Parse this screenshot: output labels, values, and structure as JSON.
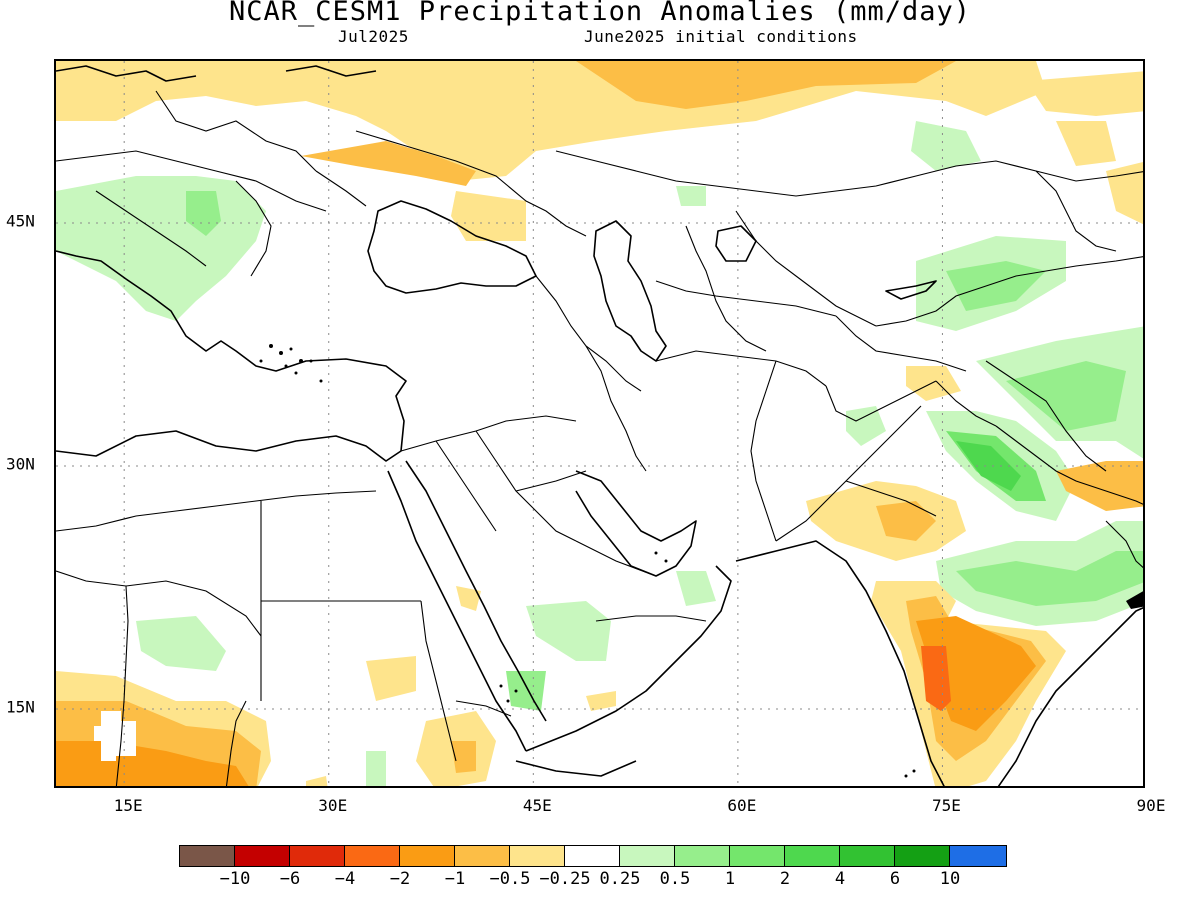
{
  "title": "NCAR_CESM1 Precipitation Anomalies (mm/day)",
  "subtitle_left": "Jul2025",
  "subtitle_right": "June2025 initial conditions",
  "map": {
    "type": "precipitation-anomaly-map",
    "lon_range": [
      10,
      90
    ],
    "lat_range": [
      10,
      55
    ],
    "x_ticks": [
      "15E",
      "30E",
      "45E",
      "60E",
      "75E",
      "90E"
    ],
    "y_ticks": [
      "45N",
      "30N",
      "15N"
    ],
    "gridlines": "dotted"
  },
  "colorbar": {
    "colors": [
      "#7a5648",
      "#c40000",
      "#e02a0a",
      "#fa6914",
      "#fa9c14",
      "#fcbe46",
      "#fee48c",
      "#ffffff",
      "#c8f7be",
      "#96ee8c",
      "#74e66c",
      "#4ed84e",
      "#32c232",
      "#14a014",
      "#1e6ee6"
    ],
    "labels": [
      "−10",
      "−6",
      "−4",
      "−2",
      "−1",
      "−0.5",
      "−0.25",
      "0.25",
      "0.5",
      "1",
      "2",
      "4",
      "6",
      "10"
    ]
  }
}
